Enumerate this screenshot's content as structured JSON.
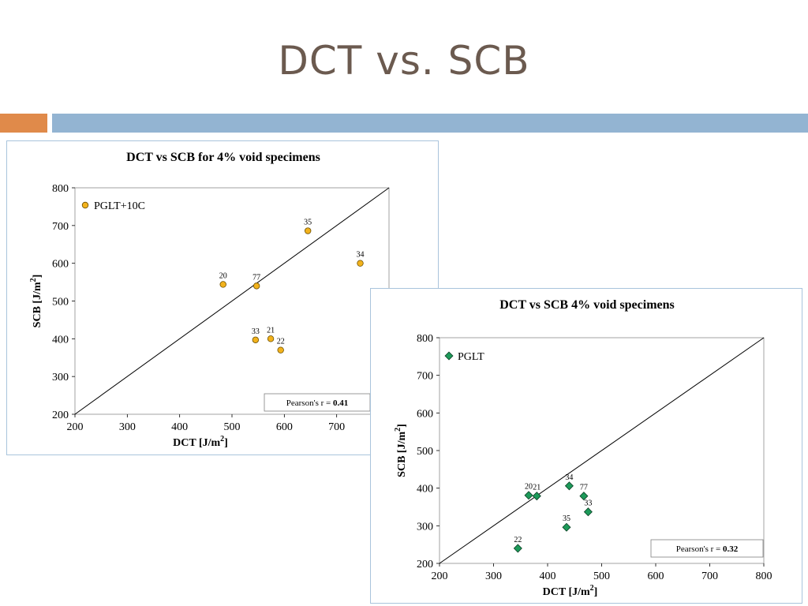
{
  "slide": {
    "title": "DCT vs. SCB"
  },
  "colors": {
    "accent_orange": "#e08a4a",
    "accent_blue": "#93b4d2",
    "series1": "#f2b21c",
    "series2": "#1d9a5a"
  },
  "chart_data": [
    {
      "type": "scatter",
      "title": "DCT vs SCB for 4% void specimens",
      "xlabel": "DCT [J/m",
      "ylabel": "SCB [J/m",
      "unit_superscript": "2",
      "unit_close": "]",
      "xlim": [
        200,
        800
      ],
      "ylim": [
        200,
        800
      ],
      "x_ticks": [
        200,
        300,
        400,
        500,
        600,
        700
      ],
      "y_ticks": [
        200,
        300,
        400,
        500,
        600,
        700,
        800
      ],
      "legend": "top-left",
      "marker": "circle",
      "color": "#f2b21c",
      "series": [
        {
          "name": "PGLT+10C",
          "points": [
            {
              "label": "35",
              "x": 645,
              "y": 686
            },
            {
              "label": "34",
              "x": 745,
              "y": 600
            },
            {
              "label": "20",
              "x": 483,
              "y": 544
            },
            {
              "label": "77",
              "x": 547,
              "y": 540
            },
            {
              "label": "33",
              "x": 545,
              "y": 397
            },
            {
              "label": "21",
              "x": 574,
              "y": 400
            },
            {
              "label": "22",
              "x": 593,
              "y": 370
            }
          ]
        }
      ],
      "reference_line": "1:1",
      "pearson_label": "Pearson's  r = ",
      "pearson_value": "0.41"
    },
    {
      "type": "scatter",
      "title": "DCT vs SCB 4% void specimens",
      "xlabel": "DCT [J/m",
      "ylabel": "SCB [J/m",
      "unit_superscript": "2",
      "unit_close": "]",
      "xlim": [
        200,
        800
      ],
      "ylim": [
        200,
        800
      ],
      "x_ticks": [
        200,
        300,
        400,
        500,
        600,
        700,
        800
      ],
      "y_ticks": [
        200,
        300,
        400,
        500,
        600,
        700,
        800
      ],
      "legend": "top-left",
      "marker": "diamond",
      "color": "#1d9a5a",
      "series": [
        {
          "name": "PGLT",
          "points": [
            {
              "label": "20",
              "x": 365,
              "y": 381
            },
            {
              "label": "21",
              "x": 380,
              "y": 379
            },
            {
              "label": "34",
              "x": 440,
              "y": 406
            },
            {
              "label": "77",
              "x": 467,
              "y": 379
            },
            {
              "label": "33",
              "x": 475,
              "y": 337
            },
            {
              "label": "35",
              "x": 435,
              "y": 296
            },
            {
              "label": "22",
              "x": 345,
              "y": 240
            }
          ]
        }
      ],
      "reference_line": "1:1",
      "pearson_label": "Pearson's  r = ",
      "pearson_value": "0.32"
    }
  ]
}
